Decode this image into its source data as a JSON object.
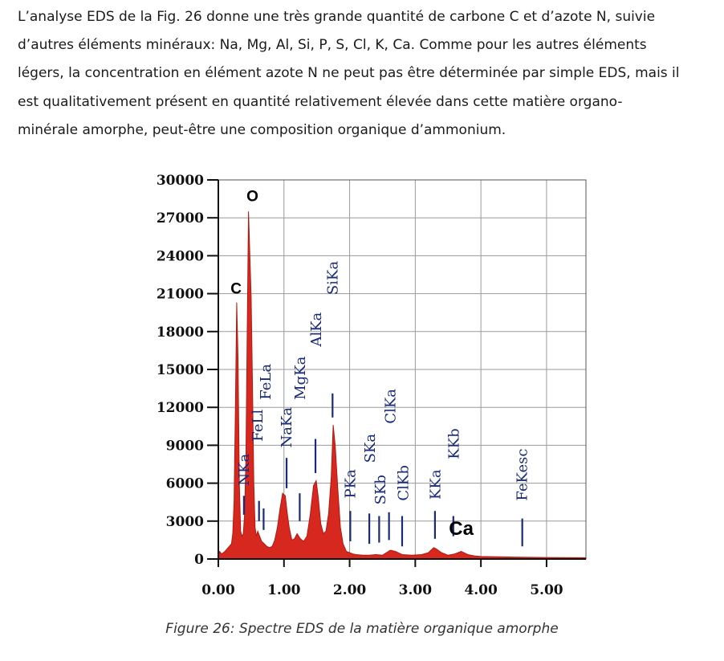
{
  "paragraph": {
    "lines": [
      "L’analyse EDS de la Fig. 26 donne une très grande quantité de carbone C et d’azote N, suivie",
      "d’autres éléments minéraux: Na, Mg, Al, Si, P, S, Cl, K, Ca. Comme pour les autres éléments",
      "légers, la concentration en élément azote N ne peut pas être déterminée par simple EDS, mais il",
      "est qualitativement présent en quantité relativement élevée dans cette matière organo-",
      "minérale amorphe, peut-être une composition organique d’ammonium."
    ]
  },
  "caption": "Figure 26: Spectre EDS de la matière organique amorphe",
  "chart_data": {
    "type": "area",
    "title": "",
    "xlabel": "",
    "ylabel": "",
    "xlim": [
      0.0,
      5.6
    ],
    "ylim": [
      0,
      30000
    ],
    "grid": true,
    "x_ticks": [
      "0.00",
      "1.00",
      "2.00",
      "3.00",
      "4.00",
      "5.00"
    ],
    "y_ticks": [
      "0",
      "3000",
      "6000",
      "9000",
      "12000",
      "15000",
      "18000",
      "21000",
      "24000",
      "27000",
      "30000"
    ],
    "fill_color": "#d6281e",
    "label_color": "#1a2a7a",
    "series": [
      {
        "x": [
          0.0,
          0.02,
          0.05,
          0.1,
          0.15,
          0.2,
          0.22,
          0.24,
          0.26,
          0.28,
          0.3,
          0.32,
          0.34,
          0.36,
          0.38,
          0.4,
          0.42,
          0.44,
          0.46,
          0.48,
          0.5,
          0.52,
          0.54,
          0.56,
          0.58,
          0.6,
          0.63,
          0.66,
          0.7,
          0.74,
          0.78,
          0.82,
          0.86,
          0.9,
          0.94,
          0.98,
          1.02,
          1.05,
          1.08,
          1.12,
          1.16,
          1.2,
          1.25,
          1.3,
          1.35,
          1.4,
          1.45,
          1.49,
          1.52,
          1.56,
          1.6,
          1.64,
          1.68,
          1.72,
          1.75,
          1.78,
          1.82,
          1.86,
          1.9,
          1.95,
          2.0,
          2.05,
          2.1,
          2.2,
          2.3,
          2.4,
          2.5,
          2.62,
          2.7,
          2.8,
          2.95,
          3.1,
          3.2,
          3.28,
          3.32,
          3.4,
          3.5,
          3.6,
          3.7,
          3.8,
          3.9,
          4.0,
          4.5,
          5.0,
          5.6
        ],
        "values": [
          200,
          600,
          400,
          600,
          900,
          1200,
          2000,
          4500,
          12000,
          20300,
          16000,
          6000,
          2200,
          1800,
          2000,
          3500,
          8000,
          18000,
          27500,
          24000,
          20700,
          14000,
          6000,
          2500,
          1800,
          2200,
          1800,
          1400,
          1200,
          1000,
          900,
          1000,
          1500,
          2500,
          4000,
          5200,
          5000,
          3600,
          2500,
          1500,
          1600,
          2000,
          1600,
          1400,
          1800,
          3500,
          5800,
          6200,
          5000,
          2800,
          2000,
          2200,
          3600,
          6500,
          10600,
          9000,
          5500,
          2500,
          1200,
          600,
          500,
          400,
          350,
          300,
          300,
          350,
          300,
          700,
          600,
          350,
          300,
          350,
          500,
          900,
          800,
          500,
          300,
          400,
          600,
          350,
          250,
          200,
          150,
          120,
          100
        ]
      }
    ],
    "annotations": [
      {
        "text": "C",
        "x": 0.27,
        "y": 21000,
        "style": "big"
      },
      {
        "text": "O",
        "x": 0.52,
        "y": 28300,
        "style": "big"
      },
      {
        "text": "NKa",
        "x": 0.39,
        "y": 5800,
        "style": "rotated"
      },
      {
        "text": "FeLl",
        "x": 0.6,
        "y": 9300,
        "style": "rotated"
      },
      {
        "text": "FeLa",
        "x": 0.72,
        "y": 12600,
        "style": "rotated"
      },
      {
        "text": "NaKa",
        "x": 1.04,
        "y": 8800,
        "style": "rotated"
      },
      {
        "text": "MgKa",
        "x": 1.25,
        "y": 12600,
        "style": "rotated"
      },
      {
        "text": "AlKa",
        "x": 1.49,
        "y": 16800,
        "style": "rotated"
      },
      {
        "text": "SiKa",
        "x": 1.74,
        "y": 20900,
        "style": "rotated"
      },
      {
        "text": "PKa",
        "x": 2.01,
        "y": 4800,
        "style": "rotated"
      },
      {
        "text": "SKa",
        "x": 2.31,
        "y": 7600,
        "style": "rotated"
      },
      {
        "text": "SKb",
        "x": 2.47,
        "y": 4300,
        "style": "rotated"
      },
      {
        "text": "ClKa",
        "x": 2.62,
        "y": 10700,
        "style": "rotated"
      },
      {
        "text": "ClKb",
        "x": 2.82,
        "y": 4600,
        "style": "rotated"
      },
      {
        "text": "KKa",
        "x": 3.31,
        "y": 4700,
        "style": "rotated"
      },
      {
        "text": "KKb",
        "x": 3.59,
        "y": 7900,
        "style": "rotated"
      },
      {
        "text": "FeKesc",
        "x": 4.63,
        "y": 4600,
        "style": "rotated"
      },
      {
        "text": "Ca",
        "x": 3.7,
        "y": 1900,
        "style": "big"
      }
    ],
    "markers": [
      {
        "x": 0.39,
        "y1": 3500,
        "y2": 5000
      },
      {
        "x": 0.62,
        "y1": 3000,
        "y2": 4600
      },
      {
        "x": 0.69,
        "y1": 2300,
        "y2": 4000
      },
      {
        "x": 1.04,
        "y1": 5600,
        "y2": 8000
      },
      {
        "x": 1.24,
        "y1": 3000,
        "y2": 5200
      },
      {
        "x": 1.48,
        "y1": 6800,
        "y2": 9500
      },
      {
        "x": 1.74,
        "y1": 11200,
        "y2": 13100
      },
      {
        "x": 2.01,
        "y1": 1400,
        "y2": 3800
      },
      {
        "x": 2.3,
        "y1": 1200,
        "y2": 3600
      },
      {
        "x": 2.45,
        "y1": 1300,
        "y2": 3400
      },
      {
        "x": 2.6,
        "y1": 1500,
        "y2": 3700
      },
      {
        "x": 2.8,
        "y1": 1000,
        "y2": 3400
      },
      {
        "x": 3.3,
        "y1": 1600,
        "y2": 3800
      },
      {
        "x": 3.58,
        "y1": 1800,
        "y2": 3400
      },
      {
        "x": 4.63,
        "y1": 1000,
        "y2": 3200
      }
    ]
  }
}
